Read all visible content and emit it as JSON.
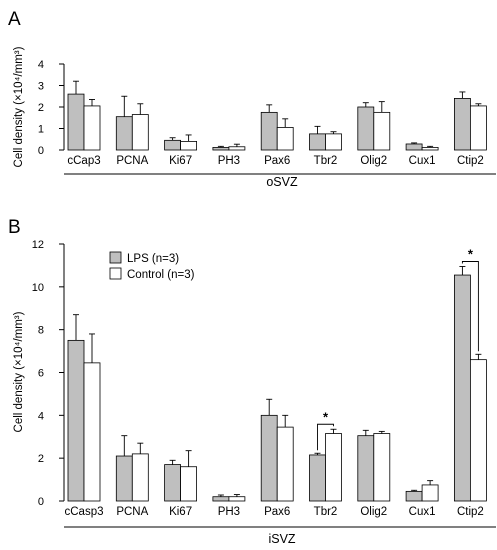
{
  "colors": {
    "lps": "#bfbfbf",
    "control": "#ffffff",
    "stroke": "#000000"
  },
  "chart_data": [
    {
      "type": "bar",
      "panel": "A",
      "region": "oSVZ",
      "ylabel": "Cell density (×10⁴/mm³)",
      "ylim": [
        0,
        4
      ],
      "yticks": [
        0,
        1,
        2,
        3,
        4
      ],
      "categories": [
        "cCap3",
        "PCNA",
        "Ki67",
        "PH3",
        "Pax6",
        "Tbr2",
        "Olig2",
        "Cux1",
        "Ctip2"
      ],
      "series": [
        {
          "name": "LPS (n=3)",
          "values": [
            2.6,
            1.55,
            0.45,
            0.12,
            1.75,
            0.75,
            2.0,
            0.28,
            2.4
          ],
          "errors": [
            0.6,
            0.95,
            0.12,
            0.05,
            0.35,
            0.35,
            0.2,
            0.05,
            0.3
          ]
        },
        {
          "name": "Control (n=3)",
          "values": [
            2.05,
            1.65,
            0.4,
            0.15,
            1.05,
            0.75,
            1.75,
            0.12,
            2.05
          ],
          "errors": [
            0.3,
            0.5,
            0.3,
            0.12,
            0.4,
            0.1,
            0.5,
            0.05,
            0.1
          ]
        }
      ],
      "significance": []
    },
    {
      "type": "bar",
      "panel": "B",
      "region": "iSVZ",
      "ylabel": "Cell density (×10⁴/mm³)",
      "ylim": [
        0,
        12
      ],
      "yticks": [
        0,
        2,
        4,
        6,
        8,
        10,
        12
      ],
      "categories": [
        "cCasp3",
        "PCNA",
        "Ki67",
        "PH3",
        "Pax6",
        "Tbr2",
        "Olig2",
        "Cux1",
        "Ctip2"
      ],
      "series": [
        {
          "name": "LPS (n=3)",
          "values": [
            7.5,
            2.1,
            1.7,
            0.2,
            4.0,
            2.15,
            3.05,
            0.45,
            10.55
          ],
          "errors": [
            1.2,
            0.95,
            0.2,
            0.08,
            0.75,
            0.08,
            0.25,
            0.05,
            0.4
          ]
        },
        {
          "name": "Control (n=3)",
          "values": [
            6.45,
            2.2,
            1.6,
            0.2,
            3.45,
            3.15,
            3.15,
            0.75,
            6.6
          ],
          "errors": [
            1.35,
            0.5,
            0.75,
            0.1,
            0.55,
            0.2,
            0.1,
            0.2,
            0.25
          ]
        }
      ],
      "significance": [
        {
          "category": "Tbr2",
          "label": "*"
        },
        {
          "category": "Ctip2",
          "label": "*"
        }
      ],
      "legend": {
        "placement": "top-left",
        "items": [
          {
            "label": "LPS (n=3)",
            "color": "#bfbfbf"
          },
          {
            "label": "Control (n=3)",
            "color": "#ffffff"
          }
        ]
      }
    }
  ]
}
